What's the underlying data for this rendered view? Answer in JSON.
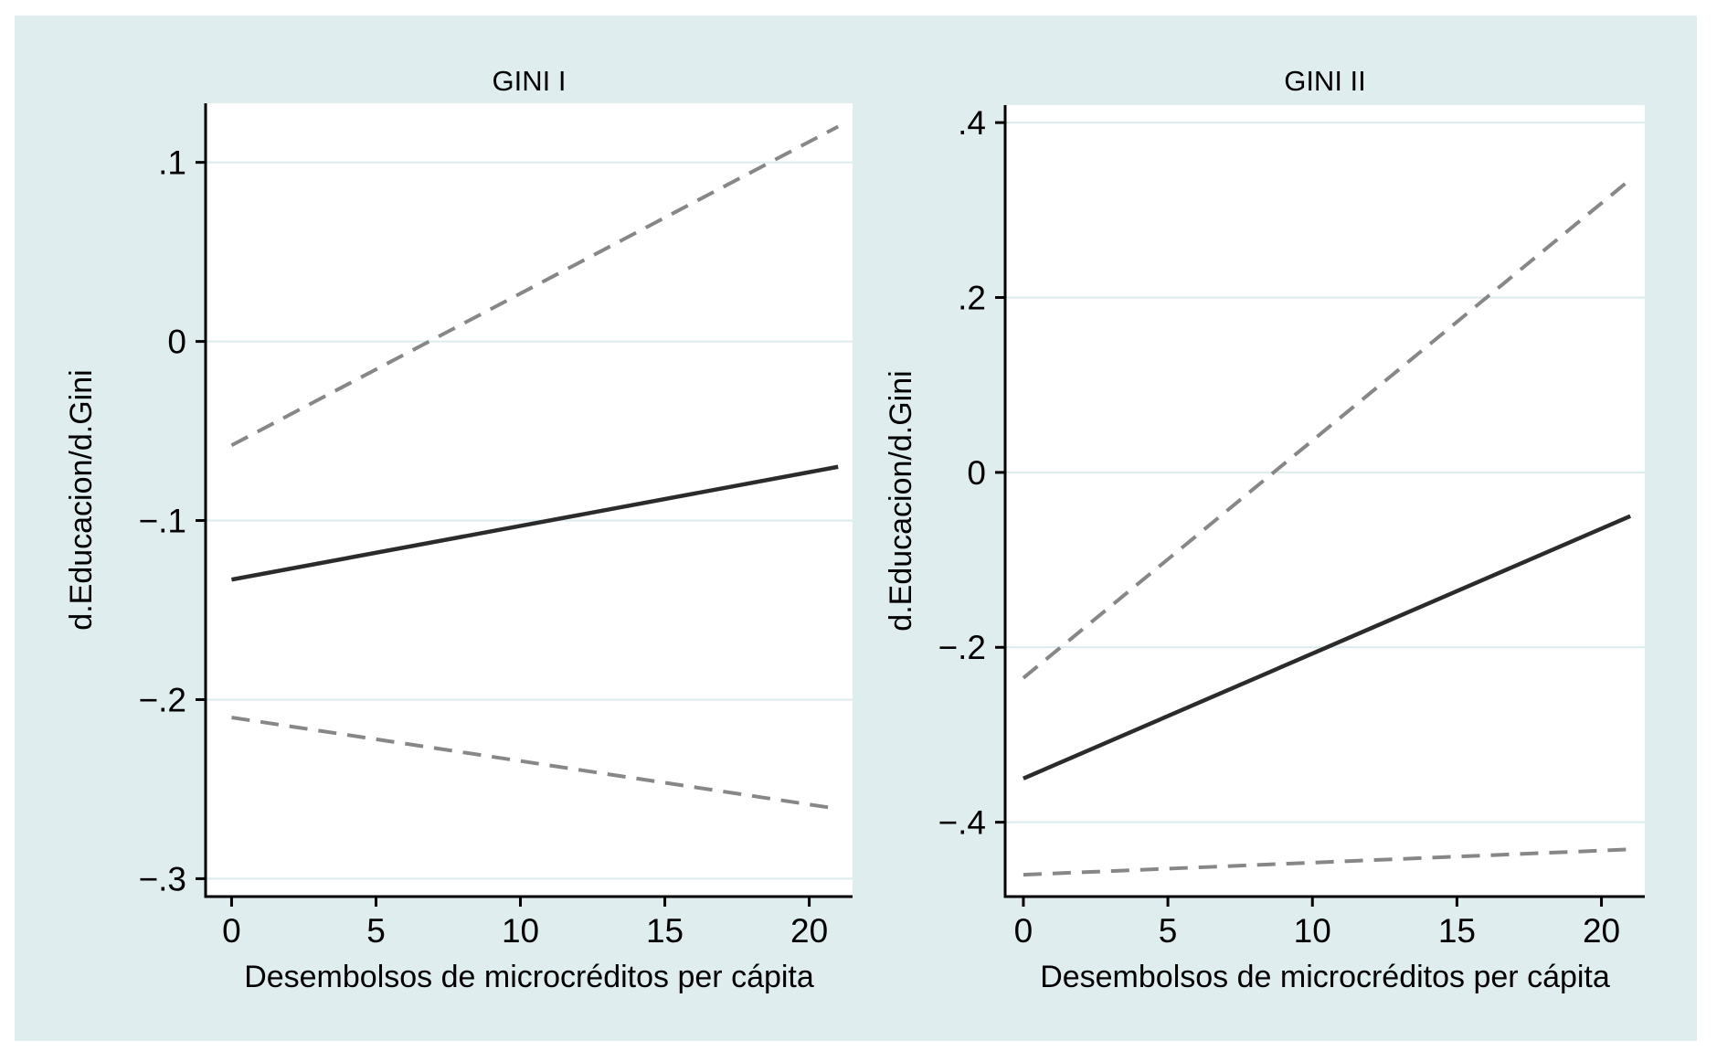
{
  "colors": {
    "page_background": "#ffffff",
    "canvas_background": "#dfedee",
    "plot_background": "#ffffff",
    "grid_line": "#dcebec",
    "axis_line": "#000000",
    "tick_text": "#000000",
    "panel_title": "#1e2e4d",
    "solid_line": "#2b2b2b",
    "dashed_line": "#878787"
  },
  "chart_data": [
    {
      "type": "line",
      "title": "GINI I",
      "xlabel": "Desembolsos de microcréditos per cápita",
      "ylabel": "d.Educacion/d.Gini",
      "grid": "horizontal",
      "legend": "none",
      "xlim": [
        -0.9,
        21.5
      ],
      "ylim": [
        -0.31,
        0.133
      ],
      "x_ticks": [
        0,
        5,
        10,
        15,
        20
      ],
      "x_tick_labels": [
        "0",
        "5",
        "10",
        "15",
        "20"
      ],
      "y_ticks": [
        0.1,
        0,
        -0.1,
        -0.2,
        -0.3
      ],
      "y_tick_labels": [
        ".1",
        "0",
        "−.1",
        "−.2",
        "−.3"
      ],
      "series": [
        {
          "name": "marginal-effect",
          "style": "solid",
          "x": [
            0,
            21
          ],
          "y": [
            -0.133,
            -0.07
          ]
        },
        {
          "name": "ci-upper",
          "style": "dashed",
          "x": [
            0,
            21
          ],
          "y": [
            -0.058,
            0.12
          ]
        },
        {
          "name": "ci-lower",
          "style": "dashed",
          "x": [
            0,
            21
          ],
          "y": [
            -0.21,
            -0.261
          ]
        }
      ]
    },
    {
      "type": "line",
      "title": "GINI II",
      "xlabel": "Desembolsos de microcréditos per cápita",
      "ylabel": "d.Educacion/d.Gini",
      "grid": "horizontal",
      "legend": "none",
      "xlim": [
        -0.63,
        21.5
      ],
      "ylim": [
        -0.485,
        0.42
      ],
      "x_ticks": [
        0,
        5,
        10,
        15,
        20
      ],
      "x_tick_labels": [
        "0",
        "5",
        "10",
        "15",
        "20"
      ],
      "y_ticks": [
        0.4,
        0.2,
        0,
        -0.2,
        -0.4
      ],
      "y_tick_labels": [
        ".4",
        ".2",
        "0",
        "−.2",
        "−.4"
      ],
      "series": [
        {
          "name": "marginal-effect",
          "style": "solid",
          "x": [
            0,
            21
          ],
          "y": [
            -0.35,
            -0.05
          ]
        },
        {
          "name": "ci-upper",
          "style": "dashed",
          "x": [
            0,
            21
          ],
          "y": [
            -0.235,
            0.335
          ]
        },
        {
          "name": "ci-lower",
          "style": "dashed",
          "x": [
            0,
            21
          ],
          "y": [
            -0.46,
            -0.431
          ]
        }
      ]
    }
  ]
}
